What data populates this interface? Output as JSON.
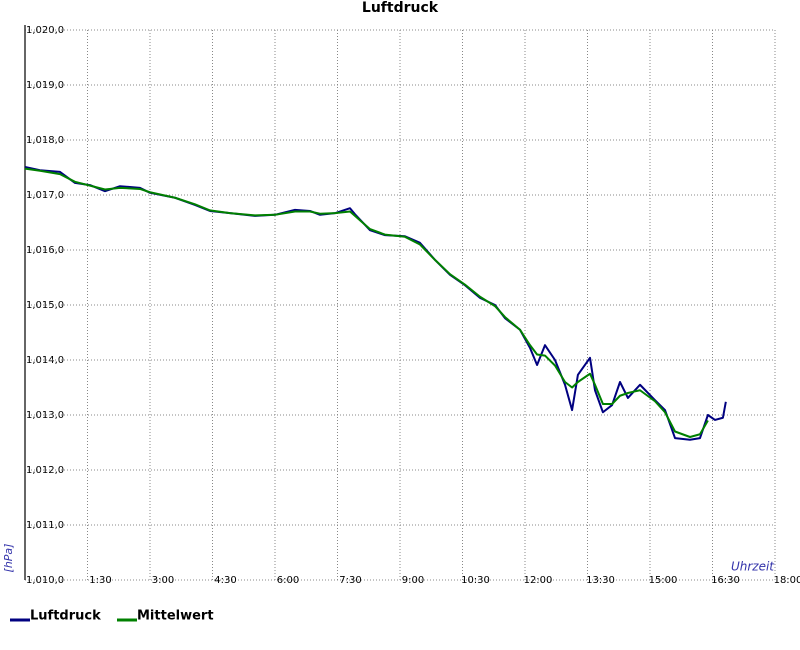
{
  "chart_data": {
    "type": "line",
    "title": "Luftdruck",
    "y_label": "[hPa]",
    "x_label": "Uhrzeit",
    "x": [
      0,
      0.36,
      0.84,
      1.2,
      1.56,
      1.92,
      2.28,
      2.76,
      3.0,
      3.6,
      4.08,
      4.44,
      4.92,
      5.52,
      6.0,
      6.48,
      6.84,
      7.08,
      7.44,
      7.8,
      7.92,
      8.28,
      8.64,
      9.12,
      9.48,
      9.84,
      10.2,
      10.56,
      10.92,
      11.28,
      11.52,
      11.88,
      12.12,
      12.29,
      12.48,
      12.72,
      12.96,
      13.13,
      13.27,
      13.56,
      13.68,
      13.87,
      14.09,
      14.28,
      14.47,
      14.76,
      15.12,
      15.36,
      15.6,
      15.96,
      16.2,
      16.39,
      16.56,
      16.75,
      16.82
    ],
    "series": [
      {
        "name": "Luftdruck",
        "color": "#000080",
        "values": [
          1017.51,
          1017.45,
          1017.42,
          1017.22,
          1017.18,
          1017.07,
          1017.16,
          1017.13,
          1017.04,
          1016.95,
          1016.82,
          1016.71,
          1016.67,
          1016.62,
          1016.64,
          1016.73,
          1016.71,
          1016.64,
          1016.67,
          1016.76,
          1016.65,
          1016.36,
          1016.27,
          1016.25,
          1016.13,
          1015.82,
          1015.55,
          1015.36,
          1015.13,
          1015.0,
          1014.76,
          1014.55,
          1014.22,
          1013.91,
          1014.27,
          1014.0,
          1013.55,
          1013.09,
          1013.73,
          1014.04,
          1013.45,
          1013.05,
          1013.18,
          1013.6,
          1013.31,
          1013.55,
          1013.27,
          1013.09,
          1012.58,
          1012.55,
          1012.58,
          1013.0,
          1012.91,
          1012.95,
          1013.24
        ]
      },
      {
        "name": "Mittelwert",
        "color": "#008000",
        "values": [
          1017.48,
          1017.44,
          1017.38,
          1017.24,
          1017.17,
          1017.1,
          1017.13,
          1017.11,
          1017.05,
          1016.95,
          1016.83,
          1016.72,
          1016.67,
          1016.63,
          1016.64,
          1016.7,
          1016.7,
          1016.66,
          1016.67,
          1016.7,
          1016.62,
          1016.38,
          1016.28,
          1016.24,
          1016.1,
          1015.82,
          1015.56,
          1015.37,
          1015.15,
          1014.98,
          1014.78,
          1014.55,
          1014.27,
          1014.1,
          1014.08,
          1013.9,
          1013.6,
          1013.5,
          1013.6,
          1013.75,
          1013.55,
          1013.2,
          1013.2,
          1013.35,
          1013.4,
          1013.45,
          1013.25,
          1013.05,
          1012.7,
          1012.6,
          1012.65,
          1012.9,
          null,
          null,
          null
        ]
      }
    ],
    "xlim": [
      0,
      18
    ],
    "xticks": [
      {
        "value": 1.5,
        "label": "1:30"
      },
      {
        "value": 3,
        "label": "3:00"
      },
      {
        "value": 4.5,
        "label": "4:30"
      },
      {
        "value": 6,
        "label": "6:00"
      },
      {
        "value": 7.5,
        "label": "7:30"
      },
      {
        "value": 9,
        "label": "9:00"
      },
      {
        "value": 10.5,
        "label": "10:30"
      },
      {
        "value": 12,
        "label": "12:00"
      },
      {
        "value": 13.5,
        "label": "13:30"
      },
      {
        "value": 15,
        "label": "15:00"
      },
      {
        "value": 16.5,
        "label": "16:30"
      },
      {
        "value": 18,
        "label": "18:00"
      }
    ],
    "ylim": [
      1010,
      1020
    ],
    "yticks": [
      {
        "value": 1010,
        "label": "1,010,0"
      },
      {
        "value": 1011,
        "label": "1,011,0"
      },
      {
        "value": 1012,
        "label": "1,012,0"
      },
      {
        "value": 1013,
        "label": "1,013,0"
      },
      {
        "value": 1014,
        "label": "1,014,0"
      },
      {
        "value": 1015,
        "label": "1,015,0"
      },
      {
        "value": 1016,
        "label": "1,016,0"
      },
      {
        "value": 1017,
        "label": "1,017,0"
      },
      {
        "value": 1018,
        "label": "1,018,0"
      },
      {
        "value": 1019,
        "label": "1,019,0"
      },
      {
        "value": 1020,
        "label": "1,020,0"
      }
    ],
    "grid": true
  }
}
